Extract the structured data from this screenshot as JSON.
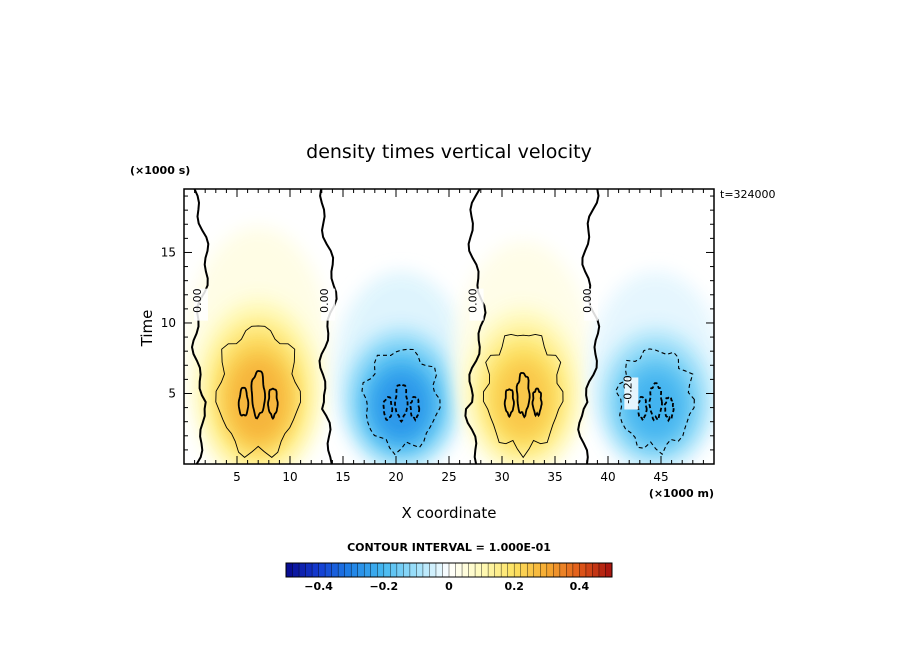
{
  "chart_data": {
    "type": "heatmap",
    "title": "density times vertical velocity",
    "xlabel": "X coordinate",
    "ylabel": "Time",
    "x_unit": "(×1000 m)",
    "y_unit": "(×1000 s)",
    "time_label": "t=324000",
    "xlim": [
      0,
      50
    ],
    "ylim": [
      0,
      19.5
    ],
    "x_ticks": [
      5,
      10,
      15,
      20,
      25,
      30,
      35,
      40,
      45
    ],
    "y_ticks": [
      5,
      10,
      15
    ],
    "contour_interval_text": "CONTOUR INTERVAL = 1.000E-01",
    "contour_labels": [
      "0.00",
      "0.00",
      "0.00",
      "0.00",
      "-0.20"
    ],
    "colorbar": {
      "min": -0.5,
      "max": 0.5,
      "tick_values": [
        -0.4,
        -0.2,
        0,
        0.2,
        0.4
      ],
      "tick_labels": [
        "−0.4",
        "−0.2",
        "0",
        "0.2",
        "0.4"
      ]
    },
    "cells": [
      {
        "name": "positive-cell-1",
        "x": 7.0,
        "y": 4.8,
        "amplitude": 0.32,
        "sx": 3.6,
        "sy": 3.6
      },
      {
        "name": "negative-cell-1",
        "x": 20.5,
        "y": 4.3,
        "amplitude": -0.3,
        "sx": 3.3,
        "sy": 2.8
      },
      {
        "name": "positive-cell-2",
        "x": 32.0,
        "y": 4.8,
        "amplitude": 0.28,
        "sx": 3.4,
        "sy": 3.3
      },
      {
        "name": "negative-cell-2",
        "x": 44.5,
        "y": 4.3,
        "amplitude": -0.24,
        "sx": 3.3,
        "sy": 2.8
      }
    ]
  }
}
